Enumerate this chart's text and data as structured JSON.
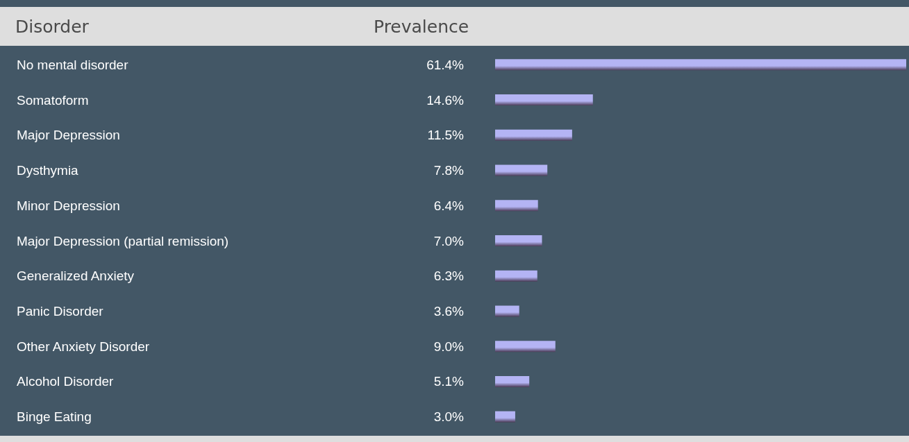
{
  "chart_data": {
    "type": "bar",
    "orientation": "horizontal",
    "ylabel": "Disorder",
    "xlabel": "Prevalence",
    "categories": [
      "No mental disorder",
      "Somatoform",
      "Major Depression",
      "Dysthymia",
      "Minor Depression",
      "Major Depression (partial remission)",
      "Generalized Anxiety",
      "Panic Disorder",
      "Other Anxiety Disorder",
      "Alcohol Disorder",
      "Binge Eating"
    ],
    "values": [
      61.4,
      14.6,
      11.5,
      7.8,
      6.4,
      7.0,
      6.3,
      3.6,
      9.0,
      5.1,
      3.0
    ],
    "value_labels": [
      "61.4%",
      "14.6%",
      "11.5%",
      "7.8%",
      "6.4%",
      "7.0%",
      "6.3%",
      "3.6%",
      "9.0%",
      "5.1%",
      "3.0%"
    ],
    "color": "#b4b4f4"
  }
}
